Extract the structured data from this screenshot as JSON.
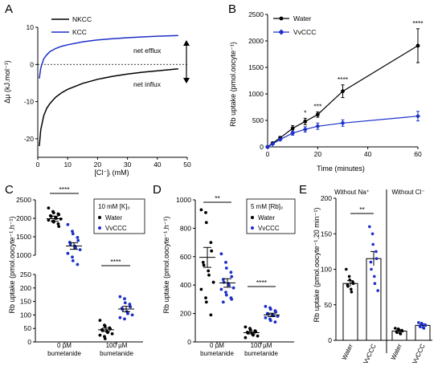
{
  "colors": {
    "black": "#000000",
    "blue": "#1c2fc8"
  },
  "chart_data": [
    {
      "panel": "A",
      "type": "line",
      "xlabel": "[Cl⁻]ᵢ (mM)",
      "ylabel": "Δμ (kJ.mol⁻¹)",
      "xlim": [
        0,
        50
      ],
      "ylim": [
        -25,
        10
      ],
      "xticks": [
        0,
        10,
        20,
        30,
        40,
        50
      ],
      "yticks": [
        10,
        0,
        -10,
        -20
      ],
      "series": [
        {
          "name": "NKCC",
          "color": "#000000",
          "x": [
            0.5,
            1,
            2,
            3,
            4,
            6,
            8,
            10,
            15,
            20,
            25,
            30,
            35,
            40,
            47
          ],
          "y": [
            -22,
            -17.6,
            -13.8,
            -11.8,
            -10.6,
            -8.8,
            -7.6,
            -6.7,
            -5.1,
            -4.0,
            -3.2,
            -2.6,
            -2.1,
            -1.7,
            -1.2
          ]
        },
        {
          "name": "KCC",
          "color": "#1c2fc8",
          "x": [
            0.5,
            1,
            1.5,
            2,
            3,
            4,
            6,
            8,
            10,
            15,
            20,
            25,
            30,
            35,
            40,
            47
          ],
          "y": [
            -3.8,
            -1.0,
            0.3,
            1.5,
            2.6,
            3.4,
            4.3,
            4.9,
            5.3,
            6.1,
            6.6,
            6.9,
            7.2,
            7.4,
            7.6,
            7.8
          ]
        }
      ],
      "annotations": {
        "up": "net efflux",
        "down": "net influx"
      }
    },
    {
      "panel": "B",
      "type": "line",
      "xlabel": "Time (minutes)",
      "ylabel": "Rb uptake (pmol.oocyte⁻¹)",
      "xlim": [
        0,
        60
      ],
      "ylim": [
        0,
        2500
      ],
      "xticks": [
        0,
        20,
        40,
        60
      ],
      "yticks": [
        0,
        500,
        1000,
        1500,
        2000,
        2500
      ],
      "series": [
        {
          "name": "Water",
          "color": "#000000",
          "x": [
            0,
            2,
            5,
            10,
            15,
            20,
            30,
            60
          ],
          "y": [
            0,
            70,
            170,
            350,
            480,
            610,
            1050,
            1910
          ],
          "err": [
            0,
            10,
            25,
            50,
            60,
            50,
            120,
            320
          ]
        },
        {
          "name": "VvCCC",
          "color": "#1c2fc8",
          "x": [
            0,
            2,
            5,
            10,
            15,
            20,
            30,
            60
          ],
          "y": [
            0,
            55,
            140,
            260,
            330,
            390,
            450,
            580
          ],
          "err": [
            0,
            10,
            20,
            40,
            50,
            60,
            60,
            90
          ]
        }
      ],
      "significance": [
        {
          "x": 15,
          "label": "*"
        },
        {
          "x": 20,
          "label": "***"
        },
        {
          "x": 30,
          "label": "****"
        },
        {
          "x": 60,
          "label": "****"
        }
      ]
    },
    {
      "panel": "C",
      "type": "scatter",
      "ylabel": "Rb uptake (pmol.oocyte⁻¹.h⁻¹)",
      "yticks_upper": [
        1000,
        1500,
        2000,
        2500
      ],
      "yticks_lower": [
        0,
        50,
        100,
        150,
        200,
        250
      ],
      "legend_title": "10 mM [K]ₒ",
      "categories": [
        "0 µM bumetanide",
        "100 µM bumetanide"
      ],
      "groups": [
        {
          "name": "Water",
          "category": 0,
          "mean": 1990,
          "sem": 70,
          "values": [
            2280,
            2180,
            2150,
            2120,
            2100,
            2070,
            2050,
            2020,
            2000,
            1980,
            1950,
            1920,
            1900,
            1850,
            1780
          ]
        },
        {
          "name": "VvCCC",
          "category": 0,
          "mean": 1250,
          "sem": 90,
          "values": [
            1830,
            1650,
            1580,
            1480,
            1400,
            1350,
            1300,
            1250,
            1200,
            1150,
            1050,
            950,
            850,
            750
          ]
        },
        {
          "name": "Water",
          "category": 1,
          "mean": 45,
          "sem": 6,
          "values": [
            80,
            62,
            58,
            52,
            48,
            45,
            42,
            38,
            35,
            30,
            25,
            20,
            12
          ]
        },
        {
          "name": "VvCCC",
          "category": 1,
          "mean": 122,
          "sem": 10,
          "values": [
            168,
            160,
            145,
            140,
            130,
            125,
            120,
            112,
            105,
            100,
            90,
            85
          ]
        }
      ],
      "significance": [
        "****",
        "****"
      ]
    },
    {
      "panel": "D",
      "type": "scatter",
      "ylabel": "Rb uptake (pmol.oocyte⁻¹.h⁻¹)",
      "ylim": [
        0,
        1000
      ],
      "yticks": [
        0,
        200,
        400,
        600,
        800,
        1000
      ],
      "legend_title": "5 mM [Rb]ₒ",
      "categories": [
        "0 µM bumetanide",
        "100 µM bumetanide"
      ],
      "groups": [
        {
          "name": "Water",
          "category": 0,
          "mean": 595,
          "sem": 70,
          "values": [
            930,
            910,
            840,
            700,
            640,
            560,
            540,
            500,
            470,
            420,
            370,
            310,
            280,
            190
          ]
        },
        {
          "name": "VvCCC",
          "category": 0,
          "mean": 415,
          "sem": 30,
          "values": [
            620,
            560,
            520,
            490,
            460,
            440,
            420,
            410,
            400,
            380,
            370,
            350,
            330,
            310,
            300,
            280
          ]
        },
        {
          "name": "Water",
          "category": 1,
          "mean": 65,
          "sem": 8,
          "values": [
            105,
            95,
            85,
            78,
            72,
            68,
            62,
            55,
            48,
            42,
            30
          ]
        },
        {
          "name": "VvCCC",
          "category": 1,
          "mean": 190,
          "sem": 12,
          "values": [
            250,
            240,
            230,
            220,
            210,
            200,
            195,
            190,
            185,
            180,
            170,
            160,
            150,
            140
          ]
        }
      ],
      "significance": [
        "**",
        "****"
      ]
    },
    {
      "panel": "E",
      "type": "bar",
      "ylabel": "Rb uptake (pmol.oocyte⁻¹.20 min⁻¹)",
      "ylim": [
        0,
        200
      ],
      "yticks": [
        0,
        50,
        100,
        150,
        200
      ],
      "group_labels": [
        "Without Na⁺",
        "Without Cl⁻"
      ],
      "categories": [
        "Water",
        "VvCCC",
        "Water",
        "VvCCC"
      ],
      "values": [
        80,
        115,
        13,
        21
      ],
      "err": [
        4,
        10,
        1.5,
        1.5
      ],
      "colors": [
        "#000000",
        "#1c2fc8",
        "#000000",
        "#1c2fc8"
      ],
      "points": [
        [
          100,
          90,
          85,
          82,
          80,
          78,
          76,
          72,
          68
        ],
        [
          160,
          150,
          135,
          125,
          115,
          110,
          100,
          90,
          80,
          70
        ],
        [
          17,
          16,
          15,
          14,
          13,
          12,
          11,
          10,
          9
        ],
        [
          25,
          24,
          23,
          22,
          21,
          20,
          19,
          18,
          17
        ]
      ],
      "significance": [
        "**"
      ]
    }
  ]
}
